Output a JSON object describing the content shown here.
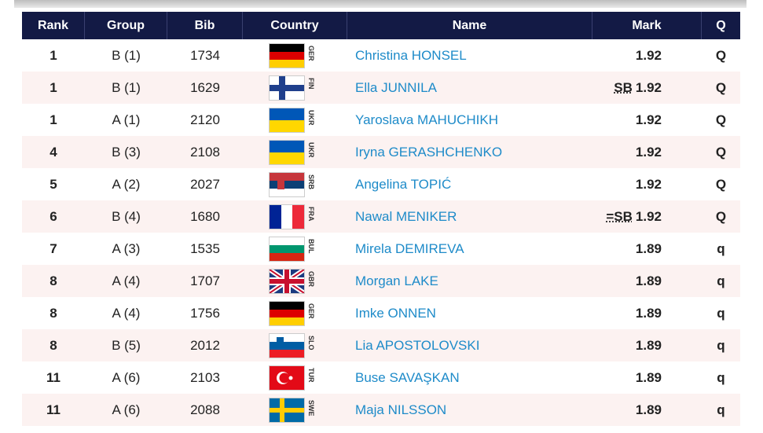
{
  "table": {
    "header": [
      "Rank",
      "Group",
      "Bib",
      "Country",
      "Name",
      "Mark",
      "Q"
    ],
    "rows": [
      {
        "rank": 1,
        "group": "B (1)",
        "bib": 1734,
        "country": "GER",
        "name": "Christina HONSEL",
        "mark": 1.92,
        "q": "Q"
      },
      {
        "rank": 1,
        "group": "B (1)",
        "bib": 1629,
        "country": "FIN",
        "name": "Ella JUNNILA",
        "note": "SB",
        "mark": 1.92,
        "q": "Q"
      },
      {
        "rank": 1,
        "group": "A (1)",
        "bib": 2120,
        "country": "UKR",
        "name": "Yaroslava MAHUCHIKH",
        "mark": 1.92,
        "q": "Q"
      },
      {
        "rank": 4,
        "group": "B (3)",
        "bib": 2108,
        "country": "UKR",
        "name": "Iryna GERASHCHENKO",
        "mark": 1.92,
        "q": "Q"
      },
      {
        "rank": 5,
        "group": "A (2)",
        "bib": 2027,
        "country": "SRB",
        "name": "Angelina TOPIĆ",
        "mark": 1.92,
        "q": "Q"
      },
      {
        "rank": 6,
        "group": "B (4)",
        "bib": 1680,
        "country": "FRA",
        "name": "Nawal MENIKER",
        "note": "=SB",
        "mark": 1.92,
        "q": "Q"
      },
      {
        "rank": 7,
        "group": "A (3)",
        "bib": 1535,
        "country": "BUL",
        "name": "Mirela DEMIREVA",
        "mark": 1.89,
        "q": "q"
      },
      {
        "rank": 8,
        "group": "A (4)",
        "bib": 1707,
        "country": "GBR",
        "name": "Morgan LAKE",
        "mark": 1.89,
        "q": "q"
      },
      {
        "rank": 8,
        "group": "A (4)",
        "bib": 1756,
        "country": "GER",
        "name": "Imke ONNEN",
        "mark": 1.89,
        "q": "q"
      },
      {
        "rank": 8,
        "group": "B (5)",
        "bib": 2012,
        "country": "SLO",
        "name": "Lia APOSTOLOVSKI",
        "mark": 1.89,
        "q": "q"
      },
      {
        "rank": 11,
        "group": "A (6)",
        "bib": 2103,
        "country": "TUR",
        "name": "Buse SAVAŞKAN",
        "mark": 1.89,
        "q": "q"
      },
      {
        "rank": 11,
        "group": "A (6)",
        "bib": 2088,
        "country": "SWE",
        "name": "Maja NILSSON",
        "mark": 1.89,
        "q": "q"
      }
    ]
  }
}
